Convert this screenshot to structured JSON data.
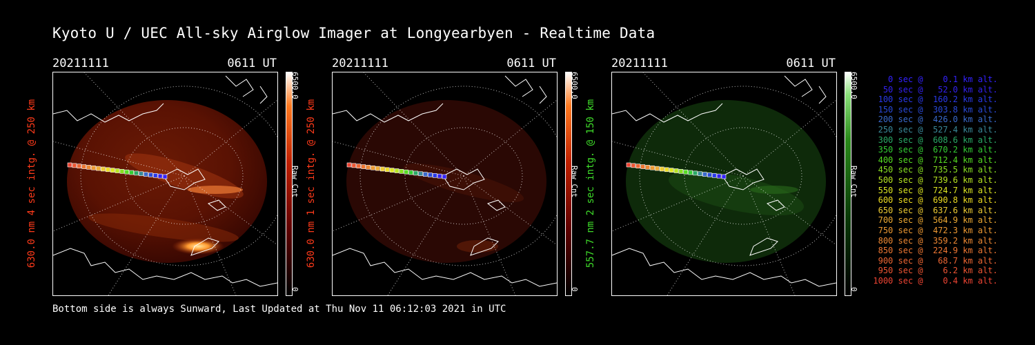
{
  "title": "Kyoto U / UEC All-sky Airglow Imager at Longyearbyen - Realtime Data",
  "footer": "Bottom side is always Sunward, Last Updated at Thu Nov 11 06:12:03 2021 in UTC",
  "panels": [
    {
      "date": "20211111",
      "time": "0611 UT",
      "ylabel": "630.0 nm 4 sec intg. @ 250 km",
      "label_color": "#ff3a1a",
      "colormap": "red",
      "cbar_max": "6500.0",
      "cbar_min": "0",
      "cbar_unit": "Raw Cnt"
    },
    {
      "date": "20211111",
      "time": "0611 UT",
      "ylabel": "630.0 nm 1 sec intg. @ 250 km",
      "label_color": "#ff3a1a",
      "colormap": "red",
      "cbar_max": "6500.0",
      "cbar_min": "0",
      "cbar_unit": "Raw Cnt"
    },
    {
      "date": "20211111",
      "time": "0611 UT",
      "ylabel": "557.7 nm 2 sec intg. @ 150 km",
      "label_color": "#3fdd2a",
      "colormap": "green",
      "cbar_max": "6500.0",
      "cbar_min": "0",
      "cbar_unit": "Raw Cnt"
    }
  ],
  "legend": [
    {
      "text": "   0 sec @    0.1 km alt.",
      "color": "#3322ff"
    },
    {
      "text": "  50 sec @   52.0 km alt.",
      "color": "#3322ee"
    },
    {
      "text": " 100 sec @  160.2 km alt.",
      "color": "#2a3ae8"
    },
    {
      "text": " 150 sec @  303.8 km alt.",
      "color": "#2a4ad8"
    },
    {
      "text": " 200 sec @  426.0 km alt.",
      "color": "#3a6acc"
    },
    {
      "text": " 250 sec @  527.4 km alt.",
      "color": "#3a8a9a"
    },
    {
      "text": " 300 sec @  608.6 km alt.",
      "color": "#2aaa66"
    },
    {
      "text": " 350 sec @  670.2 km alt.",
      "color": "#33cc33"
    },
    {
      "text": " 400 sec @  712.4 km alt.",
      "color": "#55dd22"
    },
    {
      "text": " 450 sec @  735.5 km alt.",
      "color": "#88e022"
    },
    {
      "text": " 500 sec @  739.6 km alt.",
      "color": "#b8e622"
    },
    {
      "text": " 550 sec @  724.7 km alt.",
      "color": "#dde622"
    },
    {
      "text": " 600 sec @  690.8 km alt.",
      "color": "#eedd22"
    },
    {
      "text": " 650 sec @  637.6 km alt.",
      "color": "#eecc33"
    },
    {
      "text": " 700 sec @  564.9 km alt.",
      "color": "#eeaa33"
    },
    {
      "text": " 750 sec @  472.3 km alt.",
      "color": "#ee9933"
    },
    {
      "text": " 800 sec @  359.2 km alt.",
      "color": "#ee8833"
    },
    {
      "text": " 850 sec @  224.9 km alt.",
      "color": "#ee7733"
    },
    {
      "text": " 900 sec @   68.7 km alt.",
      "color": "#ee6633"
    },
    {
      "text": " 950 sec @    6.2 km alt.",
      "color": "#ee5533"
    },
    {
      "text": "1000 sec @    0.4 km alt.",
      "color": "#ee4433"
    }
  ]
}
